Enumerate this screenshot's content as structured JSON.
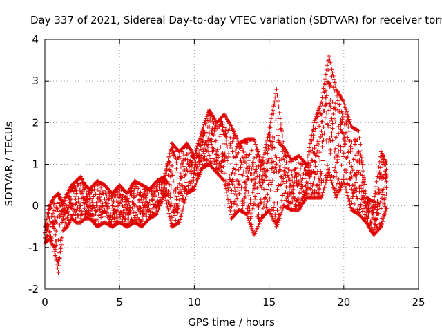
{
  "chart_data": {
    "type": "scatter",
    "title": "Day 337 of 2021, Sidereal Day-to-day VTEC variation (SDTVAR) for receiver torn",
    "xlabel": "GPS time / hours",
    "ylabel": "SDTVAR / TECUs",
    "xlim": [
      0,
      25
    ],
    "ylim": [
      -2,
      4
    ],
    "xticks": [
      "0",
      "5",
      "10",
      "15",
      "20",
      "25"
    ],
    "yticks": [
      "-2",
      "-1",
      "0",
      "1",
      "2",
      "3",
      "4"
    ],
    "grid": true,
    "marker": "plus",
    "color": "#e00000",
    "series": [
      {
        "name": "SDTVAR",
        "envelope_x": [
          0.0,
          0.3,
          0.6,
          0.9,
          1.2,
          1.5,
          1.8,
          2.1,
          2.4,
          2.7,
          3.0,
          3.5,
          4.0,
          4.5,
          5.0,
          5.5,
          6.0,
          6.5,
          7.0,
          7.5,
          8.0,
          8.5,
          9.0,
          9.5,
          10.0,
          10.5,
          11.0,
          11.5,
          12.0,
          12.5,
          13.0,
          13.5,
          14.0,
          14.5,
          15.0,
          15.5,
          16.0,
          16.5,
          17.0,
          17.5,
          18.0,
          18.5,
          19.0,
          19.5,
          20.0,
          20.5,
          21.0,
          21.5,
          22.0,
          22.5,
          22.9
        ],
        "envelope_upper": [
          -0.5,
          0.0,
          0.2,
          0.3,
          0.1,
          0.3,
          0.5,
          0.6,
          0.7,
          0.5,
          0.4,
          0.6,
          0.5,
          0.3,
          0.5,
          0.3,
          0.6,
          0.5,
          0.4,
          0.6,
          0.7,
          1.5,
          1.3,
          1.5,
          1.2,
          1.8,
          2.3,
          2.0,
          2.2,
          1.9,
          1.5,
          1.6,
          1.6,
          1.0,
          1.8,
          2.8,
          1.4,
          1.1,
          1.2,
          1.0,
          2.0,
          2.5,
          3.6,
          2.8,
          2.5,
          1.9,
          1.8,
          0.2,
          0.1,
          1.3,
          1.0
        ],
        "envelope_lower": [
          -0.9,
          -0.8,
          -1.0,
          -1.6,
          -0.6,
          -0.5,
          -0.3,
          -0.4,
          -0.4,
          -0.3,
          -0.3,
          -0.5,
          -0.4,
          -0.5,
          -0.4,
          -0.5,
          -0.4,
          -0.5,
          -0.3,
          -0.2,
          0.3,
          -0.5,
          -0.4,
          0.3,
          0.4,
          0.9,
          1.0,
          0.8,
          0.6,
          -0.3,
          -0.1,
          -0.2,
          -0.7,
          -0.3,
          -0.1,
          -0.5,
          0.0,
          -0.1,
          -0.1,
          0.2,
          0.2,
          0.2,
          0.8,
          0.2,
          0.6,
          -0.1,
          -0.2,
          -0.4,
          -0.7,
          -0.5,
          0.0
        ]
      }
    ]
  }
}
